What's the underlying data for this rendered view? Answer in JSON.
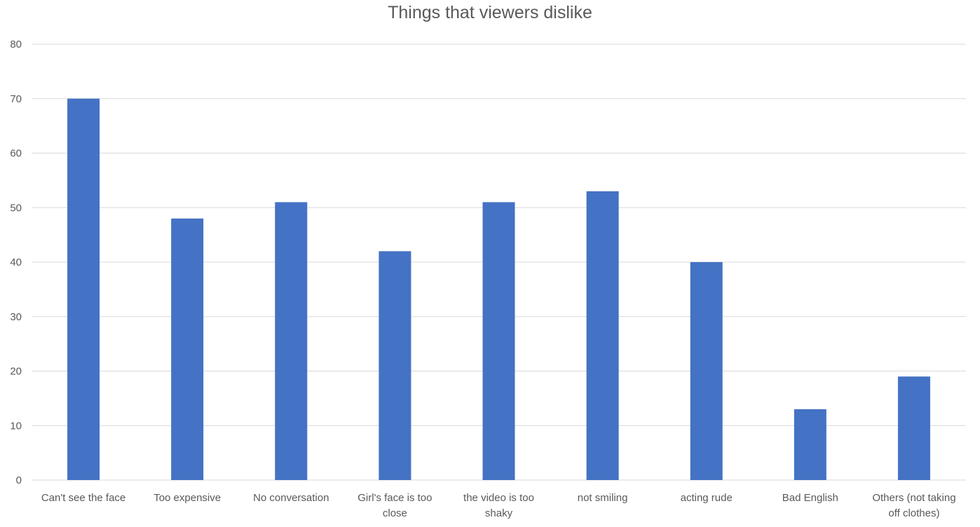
{
  "chart_data": {
    "type": "bar",
    "title": "Things that viewers dislike",
    "xlabel": "",
    "ylabel": "",
    "categories": [
      [
        "Can't see the face"
      ],
      [
        "Too expensive"
      ],
      [
        "No conversation"
      ],
      [
        "Girl's face is too",
        "close"
      ],
      [
        "the video is too",
        "shaky"
      ],
      [
        "not smiling"
      ],
      [
        "acting rude"
      ],
      [
        "Bad English"
      ],
      [
        "Others (not taking",
        "off clothes)"
      ]
    ],
    "values": [
      70,
      48,
      51,
      42,
      51,
      53,
      40,
      13,
      19
    ],
    "ylim": [
      0,
      80
    ],
    "yticks": [
      0,
      10,
      20,
      30,
      40,
      50,
      60,
      70,
      80
    ],
    "grid": true,
    "legend": "none",
    "bar_color": "#4472C4",
    "grid_color": "#D9D9D9"
  }
}
